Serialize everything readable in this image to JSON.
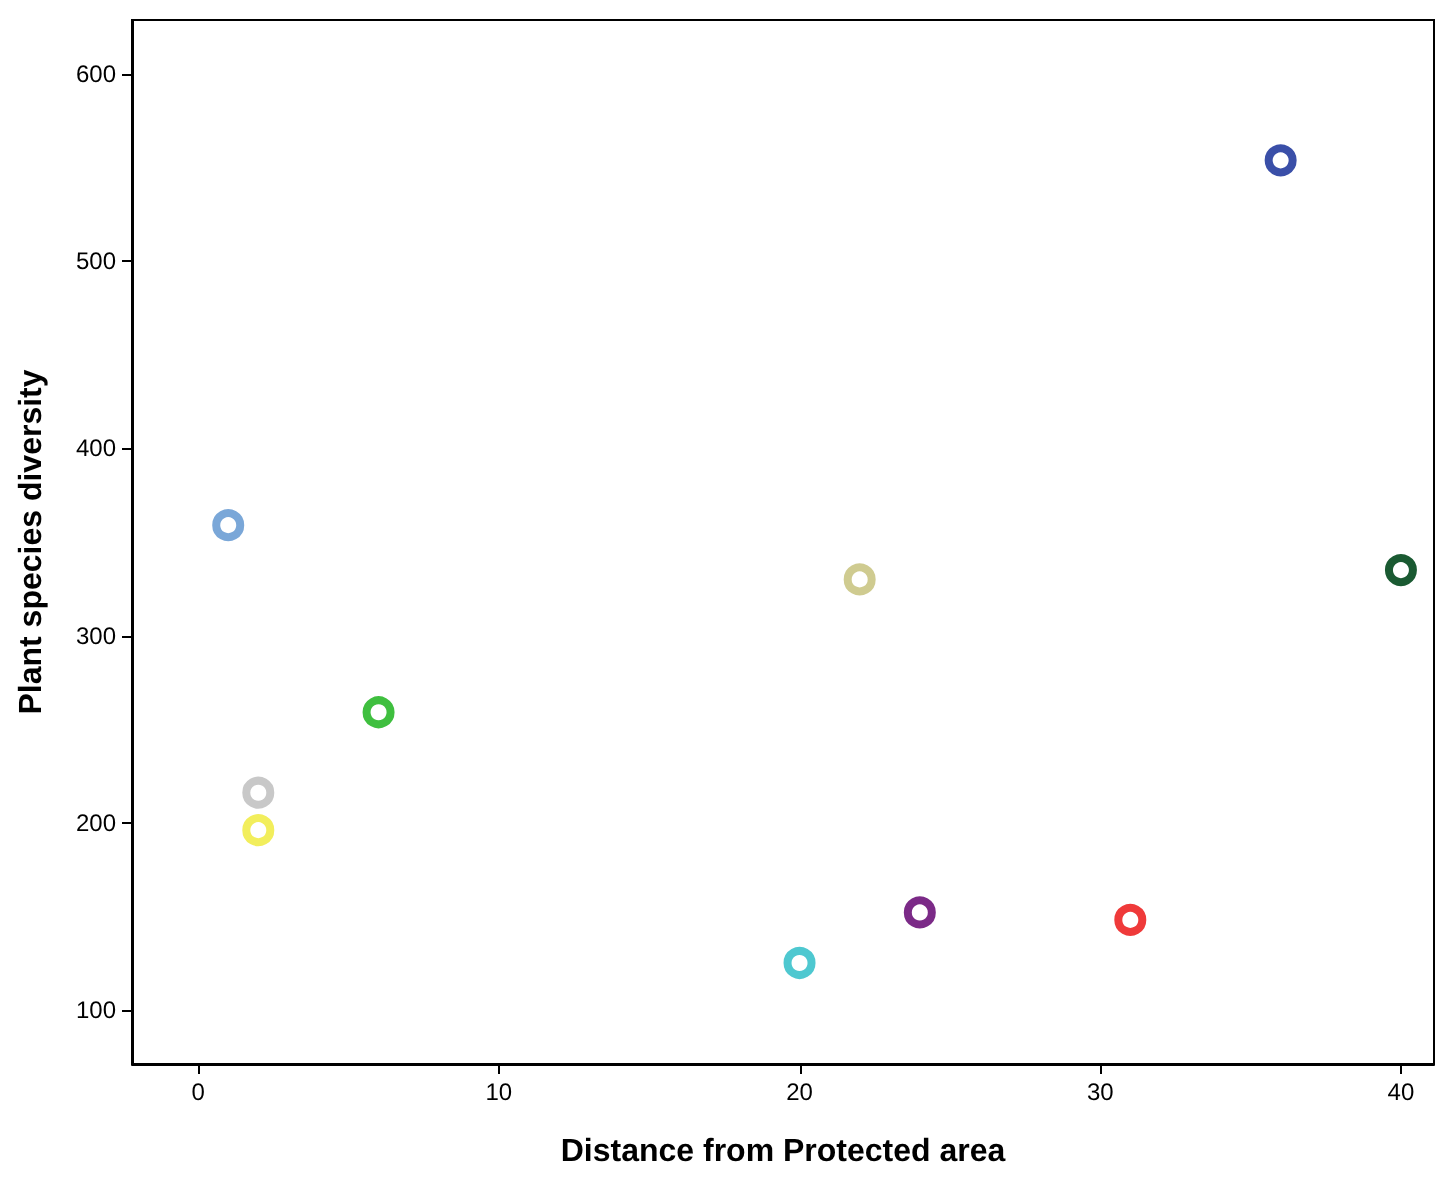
{
  "chart_data": {
    "type": "scatter",
    "xlabel": "Distance from Protected area",
    "ylabel": "Plant species diversity",
    "x": [
      1,
      2,
      2,
      6,
      20,
      22,
      24,
      31,
      36,
      40
    ],
    "values": [
      359,
      216,
      196,
      259,
      125,
      330,
      152,
      148,
      554,
      335
    ],
    "colors": [
      "#7aa7d8",
      "#c8c8c8",
      "#f2ee5c",
      "#3fbf3f",
      "#4ec8d0",
      "#cfcb90",
      "#7b2a87",
      "#ef3a3a",
      "#3a4fa8",
      "#1a5a32"
    ],
    "xlim": [
      -2.2,
      41.1
    ],
    "xticks": [
      0,
      10,
      20,
      30,
      40
    ],
    "ylim": [
      71,
      629
    ],
    "yticks": [
      100,
      200,
      300,
      400,
      500,
      600
    ],
    "grid": false,
    "marker": "circle"
  }
}
